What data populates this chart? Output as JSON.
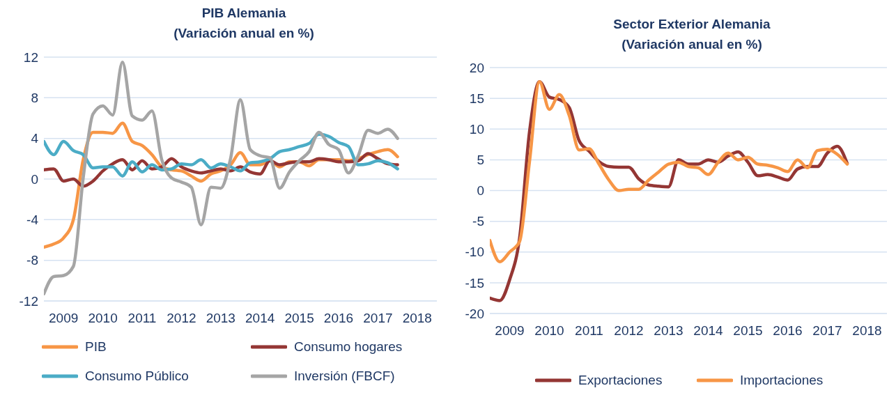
{
  "chart_data": [
    {
      "type": "line",
      "title": "PIB Alemania\n(Variación anual en %)",
      "x": [
        2009,
        2009.25,
        2009.5,
        2009.75,
        2010,
        2010.25,
        2010.5,
        2010.75,
        2011,
        2011.25,
        2011.5,
        2011.75,
        2012,
        2012.25,
        2012.5,
        2012.75,
        2013,
        2013.25,
        2013.5,
        2013.75,
        2014,
        2014.25,
        2014.5,
        2014.75,
        2015,
        2015.25,
        2015.5,
        2015.75,
        2016,
        2016.25,
        2016.5,
        2016.75,
        2017,
        2017.25,
        2017.5,
        2017.75,
        2018
      ],
      "series": [
        {
          "name": "PIB",
          "color": "#f79646",
          "values": [
            -6.7,
            -6.4,
            -5.8,
            -4.0,
            1.9,
            4.6,
            4.6,
            4.5,
            5.5,
            3.7,
            3.3,
            2.4,
            1.2,
            0.9,
            0.8,
            0.3,
            -0.2,
            0.5,
            0.8,
            1.4,
            2.6,
            1.4,
            1.4,
            1.8,
            1.2,
            1.7,
            1.7,
            1.3,
            1.9,
            1.9,
            1.9,
            1.8,
            2.0,
            2.4,
            2.7,
            2.9,
            2.2
          ]
        },
        {
          "name": "Consumo hogares",
          "color": "#943634",
          "values": [
            0.9,
            1.0,
            -0.2,
            0.0,
            -0.7,
            -0.2,
            0.8,
            1.5,
            1.9,
            0.9,
            1.8,
            1.0,
            1.2,
            2.0,
            1.2,
            0.8,
            0.6,
            0.8,
            1.0,
            0.8,
            1.2,
            0.7,
            0.5,
            1.8,
            1.4,
            1.6,
            1.7,
            1.7,
            2.0,
            1.9,
            1.7,
            1.7,
            1.8,
            2.5,
            2.0,
            1.5,
            1.4
          ]
        },
        {
          "name": "Consumo Público",
          "color": "#4bacc6",
          "values": [
            3.7,
            2.4,
            3.7,
            2.8,
            2.4,
            1.1,
            1.2,
            1.2,
            0.3,
            1.7,
            0.7,
            1.4,
            0.9,
            1.0,
            1.5,
            1.4,
            1.9,
            1.1,
            1.5,
            1.2,
            0.8,
            1.6,
            1.7,
            2.0,
            2.7,
            2.9,
            3.2,
            3.5,
            4.4,
            4.2,
            3.6,
            3.2,
            1.4,
            1.5,
            1.8,
            1.6,
            1.0
          ]
        },
        {
          "name": "Inversión (FBCF)",
          "color": "#a5a5a5",
          "values": [
            -11.3,
            -9.6,
            -9.5,
            -8.6,
            0.1,
            6.4,
            7.2,
            6.3,
            11.5,
            6.2,
            5.8,
            6.7,
            1.9,
            0.1,
            -0.3,
            -0.8,
            -4.5,
            -0.8,
            -0.9,
            2.0,
            7.8,
            2.9,
            2.3,
            2.1,
            -0.9,
            0.7,
            1.8,
            2.7,
            4.6,
            3.4,
            2.9,
            0.6,
            2.3,
            4.8,
            4.5,
            4.9,
            4.0
          ]
        }
      ],
      "xlim": [
        2009,
        2019
      ],
      "xticks": [
        {
          "value": 2009.5,
          "label": "2009"
        },
        {
          "value": 2010.5,
          "label": "2010"
        },
        {
          "value": 2011.5,
          "label": "2011"
        },
        {
          "value": 2012.5,
          "label": "2012"
        },
        {
          "value": 2013.5,
          "label": "2013"
        },
        {
          "value": 2014.5,
          "label": "2014"
        },
        {
          "value": 2015.5,
          "label": "2015"
        },
        {
          "value": 2016.5,
          "label": "2016"
        },
        {
          "value": 2017.5,
          "label": "2017"
        },
        {
          "value": 2018.5,
          "label": "2018"
        }
      ],
      "ylim": [
        -12,
        12
      ],
      "yticks": [
        -12,
        -8,
        -4,
        0,
        4,
        8,
        12
      ],
      "grid": "y",
      "legend": "bottom"
    },
    {
      "type": "line",
      "title": "Sector Exterior Alemania\n(Variación anual en %)",
      "x": [
        2009,
        2009.25,
        2009.5,
        2009.75,
        2010,
        2010.25,
        2010.5,
        2010.75,
        2011,
        2011.25,
        2011.5,
        2011.75,
        2012,
        2012.25,
        2012.5,
        2012.75,
        2013,
        2013.25,
        2013.5,
        2013.75,
        2014,
        2014.25,
        2014.5,
        2014.75,
        2015,
        2015.25,
        2015.5,
        2015.75,
        2016,
        2016.25,
        2016.5,
        2016.75,
        2017,
        2017.25,
        2017.5,
        2017.75,
        2018
      ],
      "series": [
        {
          "name": "Exportaciones",
          "color": "#943634",
          "values": [
            -17.5,
            -17.9,
            -14.5,
            -7.7,
            9.6,
            17.7,
            15.2,
            14.8,
            13.5,
            8.1,
            6.4,
            4.7,
            3.9,
            3.8,
            3.8,
            1.9,
            0.9,
            0.7,
            0.6,
            5.0,
            4.3,
            4.3,
            5.0,
            4.6,
            5.6,
            6.3,
            4.6,
            2.4,
            2.6,
            2.2,
            1.7,
            3.5,
            3.9,
            3.9,
            6.1,
            7.2,
            4.4
          ]
        },
        {
          "name": "Importaciones",
          "color": "#f79646",
          "values": [
            -8.1,
            -11.6,
            -10.0,
            -8.3,
            4.7,
            17.7,
            13.2,
            15.6,
            12.2,
            6.6,
            6.8,
            4.3,
            1.7,
            0.0,
            0.2,
            0.2,
            1.7,
            3.0,
            4.3,
            4.6,
            3.9,
            3.7,
            2.6,
            4.6,
            6.1,
            5.0,
            5.4,
            4.3,
            4.1,
            3.7,
            3.1,
            5.0,
            3.7,
            6.5,
            6.7,
            5.9,
            4.3
          ]
        }
      ],
      "xlim": [
        2009,
        2019
      ],
      "xticks": [
        {
          "value": 2009.5,
          "label": "2009"
        },
        {
          "value": 2010.5,
          "label": "2010"
        },
        {
          "value": 2011.5,
          "label": "2011"
        },
        {
          "value": 2012.5,
          "label": "2012"
        },
        {
          "value": 2013.5,
          "label": "2013"
        },
        {
          "value": 2014.5,
          "label": "2014"
        },
        {
          "value": 2015.5,
          "label": "2015"
        },
        {
          "value": 2016.5,
          "label": "2016"
        },
        {
          "value": 2017.5,
          "label": "2017"
        },
        {
          "value": 2018.5,
          "label": "2018"
        }
      ],
      "ylim": [
        -20,
        20
      ],
      "yticks": [
        -20,
        -15,
        -10,
        -5,
        0,
        5,
        10,
        15,
        20
      ],
      "grid": "y",
      "legend": "bottom"
    }
  ]
}
